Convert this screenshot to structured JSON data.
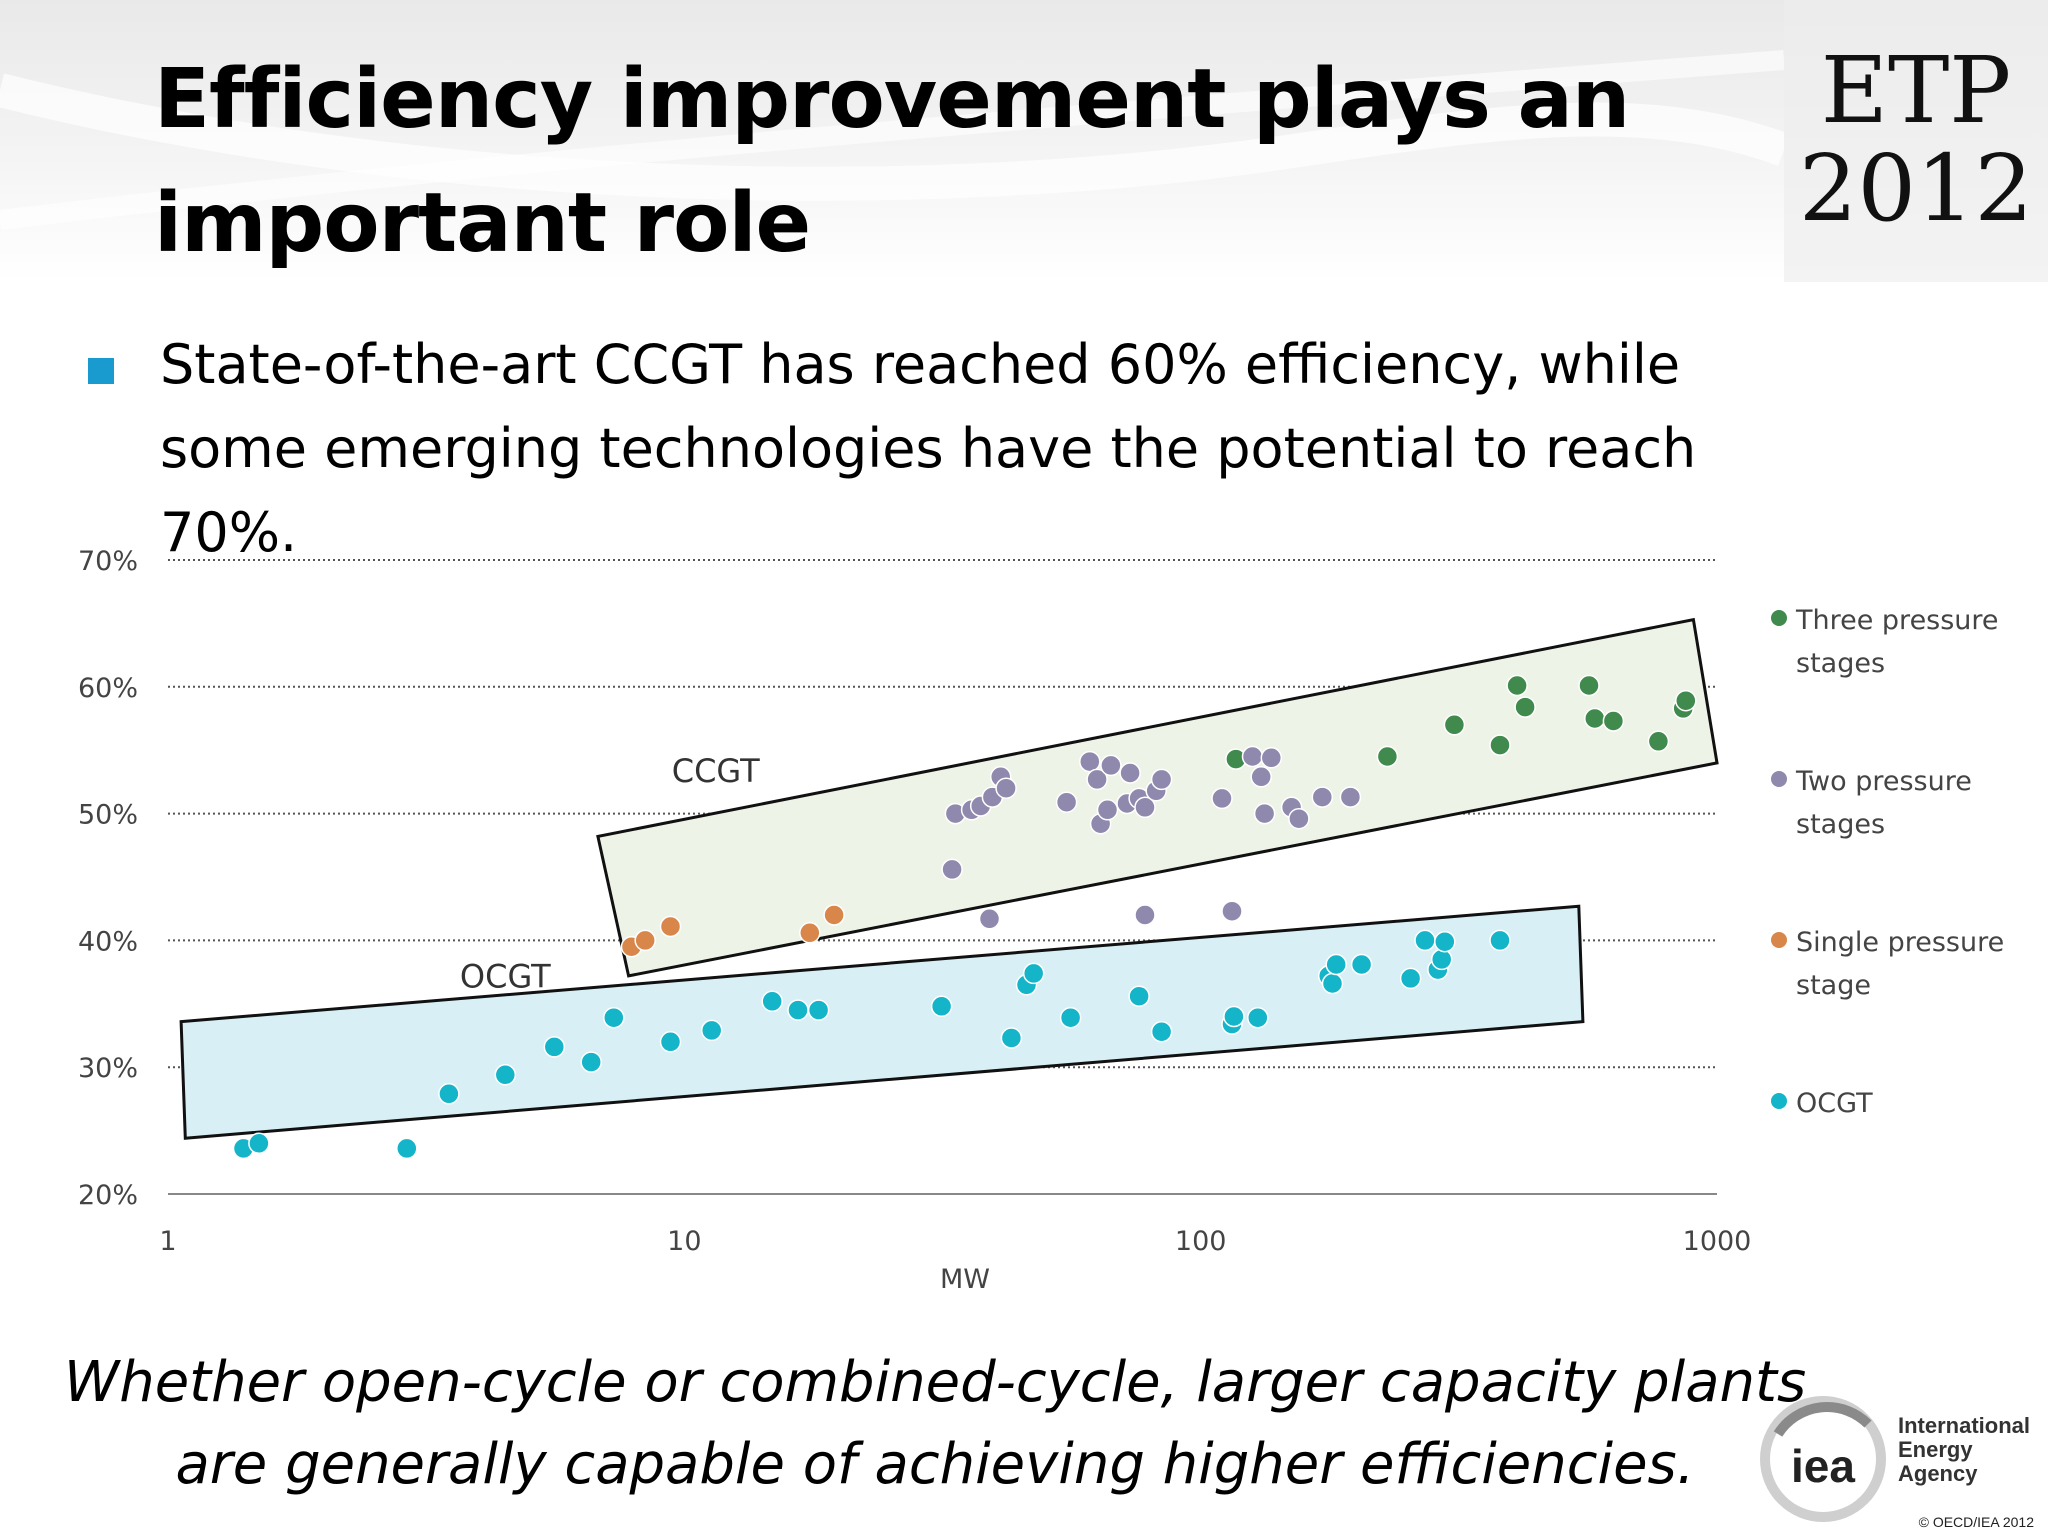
{
  "slide": {
    "title": "Efficiency improvement plays an important role",
    "logo": {
      "line1": "ETP",
      "line2": "2012"
    },
    "bullet": "State-of-the-art CCGT has reached 60% efficiency, while some emerging technologies have the potential to reach 70%.",
    "caption": "Whether open-cycle or combined-cycle, larger capacity plants are generally capable of achieving higher efficiencies.",
    "publisher": {
      "line1": "International",
      "line2": "Energy Agency",
      "mark": "iea"
    },
    "copyright": "© OECD/IEA 2012",
    "colors": {
      "bullet": "#1a9bd0",
      "three_pressure": "#3f8a4c",
      "two_pressure": "#8e89ad",
      "single_pressure": "#d9864a",
      "ocgt": "#14b4c9",
      "ccgt_band_fill": "#eef3e8",
      "ocgt_band_fill": "#d8eff6"
    }
  },
  "chart_data": {
    "type": "scatter",
    "xlabel": "MW",
    "ylabel": "",
    "x_scale": "log",
    "xlim": [
      1,
      1000
    ],
    "ylim": [
      20,
      70
    ],
    "x_ticks": [
      {
        "value": 1,
        "label": "1"
      },
      {
        "value": 10,
        "label": "10"
      },
      {
        "value": 100,
        "label": "100"
      },
      {
        "value": 1000,
        "label": "1000"
      }
    ],
    "y_ticks": [
      {
        "value": 20,
        "label": "20%"
      },
      {
        "value": 30,
        "label": "30%"
      },
      {
        "value": 40,
        "label": "40%"
      },
      {
        "value": 50,
        "label": "50%"
      },
      {
        "value": 60,
        "label": "60%"
      },
      {
        "value": 70,
        "label": "70%"
      }
    ],
    "grid": "horizontal dotted",
    "legend_position": "right",
    "bands": [
      {
        "label": "CCGT",
        "label_at": [
          11.5,
          52.5
        ],
        "polygon": [
          [
            6.8,
            48.2
          ],
          [
            7.8,
            37.2
          ],
          [
            1000,
            54.0
          ],
          [
            900,
            65.3
          ]
        ]
      },
      {
        "label": "OCGT",
        "label_at": [
          4.5,
          36.3
        ],
        "polygon": [
          [
            1.06,
            33.6
          ],
          [
            1.08,
            24.4
          ],
          [
            550,
            33.6
          ],
          [
            540,
            42.7
          ]
        ]
      }
    ],
    "series": [
      {
        "name": "Three pressure stages",
        "color": "#3f8a4c",
        "points": [
          [
            117,
            54.3
          ],
          [
            230,
            54.5
          ],
          [
            310,
            57.0
          ],
          [
            380,
            55.4
          ],
          [
            410,
            60.1
          ],
          [
            425,
            58.4
          ],
          [
            565,
            60.1
          ],
          [
            580,
            57.5
          ],
          [
            630,
            57.3
          ],
          [
            770,
            55.7
          ],
          [
            860,
            58.3
          ],
          [
            870,
            58.9
          ]
        ]
      },
      {
        "name": "Two pressure stages",
        "color": "#8e89ad",
        "points": [
          [
            33,
            45.6
          ],
          [
            33.5,
            50.0
          ],
          [
            36,
            50.3
          ],
          [
            37.5,
            50.6
          ],
          [
            39.5,
            51.3
          ],
          [
            41,
            52.9
          ],
          [
            42,
            52.0
          ],
          [
            55,
            50.9
          ],
          [
            61,
            54.1
          ],
          [
            63,
            52.7
          ],
          [
            64,
            49.2
          ],
          [
            66,
            50.3
          ],
          [
            67,
            53.8
          ],
          [
            72,
            50.8
          ],
          [
            73,
            53.2
          ],
          [
            76,
            51.2
          ],
          [
            78,
            50.5
          ],
          [
            82,
            51.8
          ],
          [
            84,
            52.7
          ],
          [
            110,
            51.2
          ],
          [
            126,
            54.5
          ],
          [
            131,
            52.9
          ],
          [
            133,
            50.0
          ],
          [
            137,
            54.4
          ],
          [
            150,
            50.5
          ],
          [
            155,
            49.6
          ],
          [
            172,
            51.3
          ],
          [
            195,
            51.3
          ],
          [
            39,
            41.7
          ],
          [
            78,
            42.0
          ],
          [
            115,
            42.3
          ]
        ]
      },
      {
        "name": "Single pressure stage",
        "color": "#d9864a",
        "points": [
          [
            7.9,
            39.5
          ],
          [
            8.4,
            40.0
          ],
          [
            9.4,
            41.1
          ],
          [
            17.5,
            40.6
          ],
          [
            19.5,
            42.0
          ]
        ]
      },
      {
        "name": "OCGT",
        "color": "#14b4c9",
        "points": [
          [
            1.4,
            23.6
          ],
          [
            1.5,
            24.0
          ],
          [
            2.9,
            23.6
          ],
          [
            3.5,
            27.9
          ],
          [
            4.5,
            29.4
          ],
          [
            5.6,
            31.6
          ],
          [
            6.6,
            30.4
          ],
          [
            7.3,
            33.9
          ],
          [
            9.4,
            32.0
          ],
          [
            11.3,
            32.9
          ],
          [
            14.8,
            35.2
          ],
          [
            16.6,
            34.5
          ],
          [
            18.2,
            34.5
          ],
          [
            31.5,
            34.8
          ],
          [
            43,
            32.3
          ],
          [
            46,
            36.5
          ],
          [
            47.5,
            37.4
          ],
          [
            56,
            33.9
          ],
          [
            76,
            35.6
          ],
          [
            84,
            32.8
          ],
          [
            115,
            33.4
          ],
          [
            116,
            34.0
          ],
          [
            129,
            33.9
          ],
          [
            177,
            37.2
          ],
          [
            180,
            36.6
          ],
          [
            183,
            38.1
          ],
          [
            205,
            38.1
          ],
          [
            255,
            37.0
          ],
          [
            272,
            40.0
          ],
          [
            288,
            37.7
          ],
          [
            293,
            38.5
          ],
          [
            297,
            39.9
          ],
          [
            380,
            40.0
          ]
        ]
      }
    ]
  }
}
